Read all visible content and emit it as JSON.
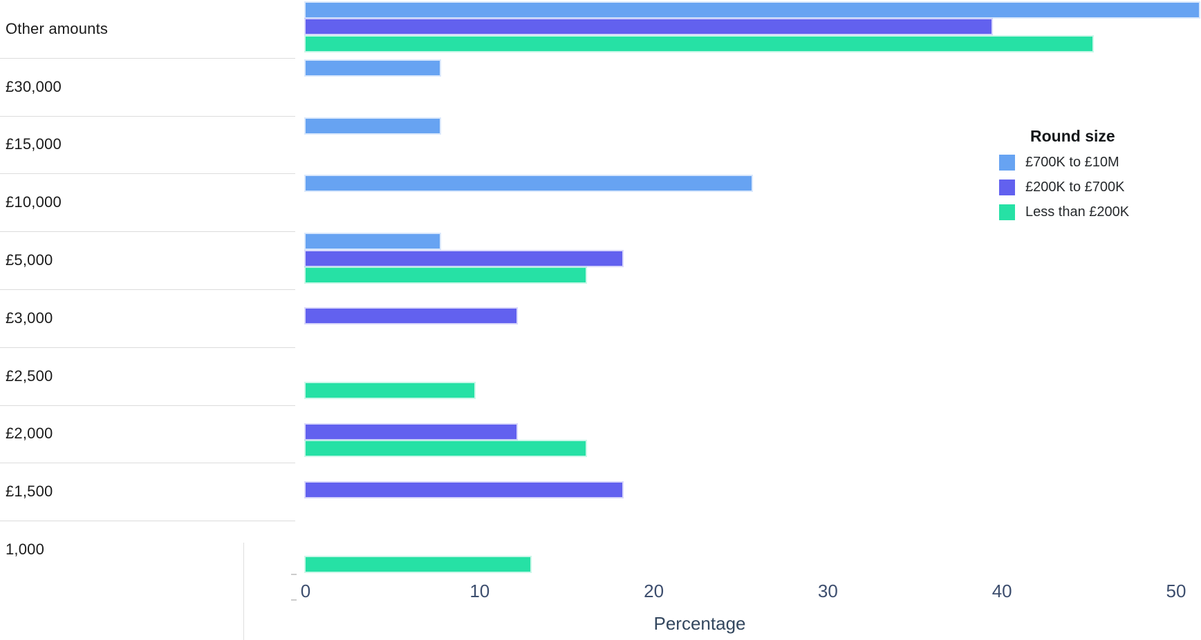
{
  "chart_data": {
    "type": "bar",
    "orientation": "horizontal",
    "xlabel": "Percentage",
    "xlim": [
      0,
      50
    ],
    "xticks": [
      "0",
      "10",
      "20",
      "30",
      "40",
      "50"
    ],
    "grid": false,
    "legend_title": "Round size",
    "legend_position": "right",
    "categories": [
      "Other amounts",
      "£30,000",
      "£15,000",
      "£10,000",
      "£5,000",
      "£3,000",
      "£2,500",
      "£2,000",
      "£1,500",
      "1,000"
    ],
    "series": [
      {
        "name": "£700K to £10M",
        "color": "#67a3f2",
        "values": [
          51.3,
          7.7,
          7.7,
          25.6,
          7.7,
          null,
          null,
          null,
          null,
          null
        ]
      },
      {
        "name": "£200K to £700K",
        "color": "#6261ef",
        "values": [
          39.4,
          null,
          null,
          null,
          18.2,
          12.1,
          null,
          12.1,
          18.2,
          null
        ]
      },
      {
        "name": "Less than £200K",
        "color": "#26e1a5",
        "values": [
          45.2,
          null,
          null,
          null,
          16.1,
          null,
          9.7,
          16.1,
          null,
          12.9
        ]
      }
    ]
  }
}
